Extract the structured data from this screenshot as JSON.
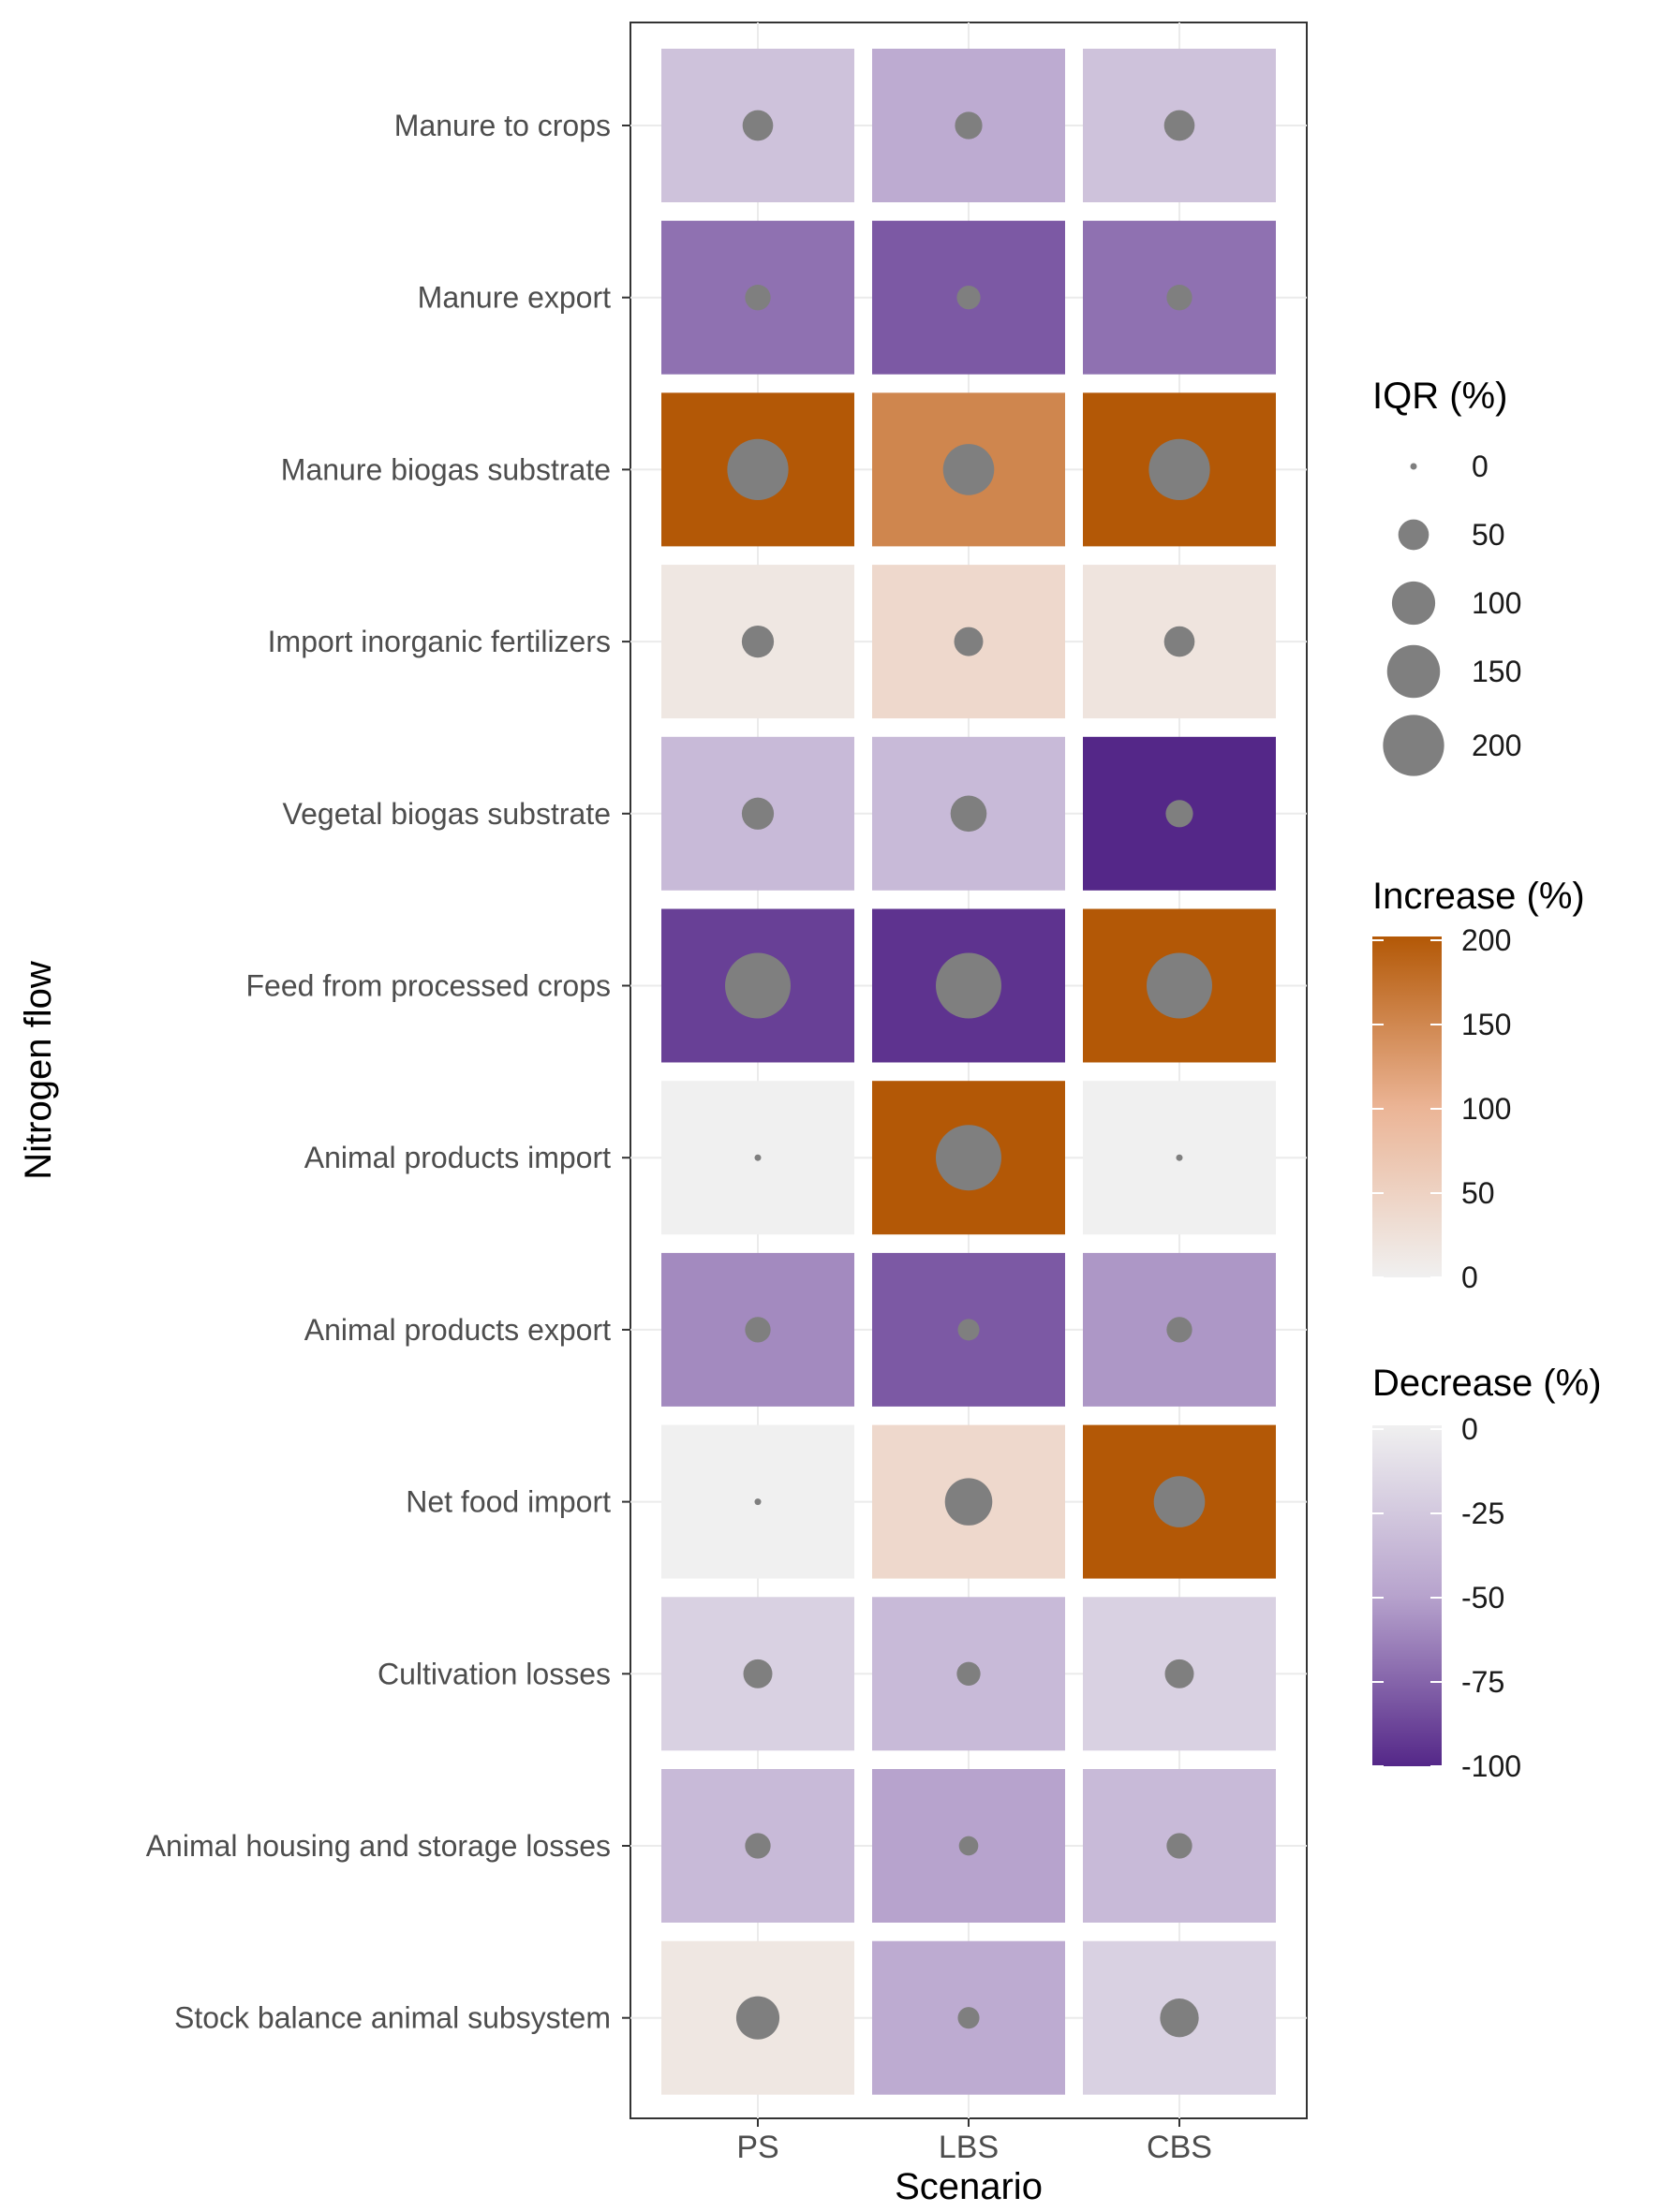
{
  "chart_data": {
    "type": "heatmap",
    "xlabel": "Scenario",
    "ylabel": "Nitrogen flow",
    "x_categories": [
      "PS",
      "LBS",
      "CBS"
    ],
    "y_categories": [
      "Manure to crops",
      "Manure export",
      "Manure biogas substrate",
      "Import inorganic fertilizers",
      "Vegetal biogas substrate",
      "Feed from processed crops",
      "Animal products import",
      "Animal products export",
      "Net food import",
      "Cultivation losses",
      "Animal housing and storage losses",
      "Stock balance animal subsystem"
    ],
    "change_pct": [
      [
        -30,
        -45,
        -30
      ],
      [
        -70,
        -80,
        -70
      ],
      [
        200,
        150,
        200
      ],
      [
        15,
        40,
        20
      ],
      [
        -35,
        -35,
        -100
      ],
      [
        -90,
        -95,
        200
      ],
      [
        0,
        200,
        0
      ],
      [
        -60,
        -80,
        -55
      ],
      [
        0,
        40,
        200
      ],
      [
        -20,
        -35,
        -20
      ],
      [
        -35,
        -50,
        -35
      ],
      [
        15,
        -45,
        -20
      ]
    ],
    "iqr_pct": [
      [
        50,
        40,
        50
      ],
      [
        35,
        30,
        35
      ],
      [
        200,
        140,
        200
      ],
      [
        55,
        45,
        50
      ],
      [
        55,
        70,
        40
      ],
      [
        230,
        230,
        230
      ],
      [
        2,
        230,
        2
      ],
      [
        35,
        25,
        35
      ],
      [
        2,
        120,
        140
      ],
      [
        45,
        30,
        45
      ],
      [
        35,
        20,
        35
      ],
      [
        100,
        25,
        80
      ]
    ],
    "colors": {
      "increase_low": "#f0f0f0",
      "increase_mid": "#ebb495",
      "increase_high": "#b35806",
      "decrease_low": "#f0f0f0",
      "decrease_mid": "#b7a3cd",
      "decrease_high": "#542788",
      "point": "#7f7f7f",
      "panel_border": "#333333"
    },
    "legends": {
      "size": {
        "title": "IQR (%)",
        "breaks": [
          0,
          50,
          100,
          150,
          200
        ]
      },
      "increase": {
        "title": "Increase (%)",
        "breaks": [
          200,
          150,
          100,
          50,
          0
        ],
        "range": [
          0,
          200
        ]
      },
      "decrease": {
        "title": "Decrease (%)",
        "breaks": [
          0,
          -25,
          -50,
          -75,
          -100
        ],
        "range": [
          -100,
          0
        ]
      }
    }
  }
}
